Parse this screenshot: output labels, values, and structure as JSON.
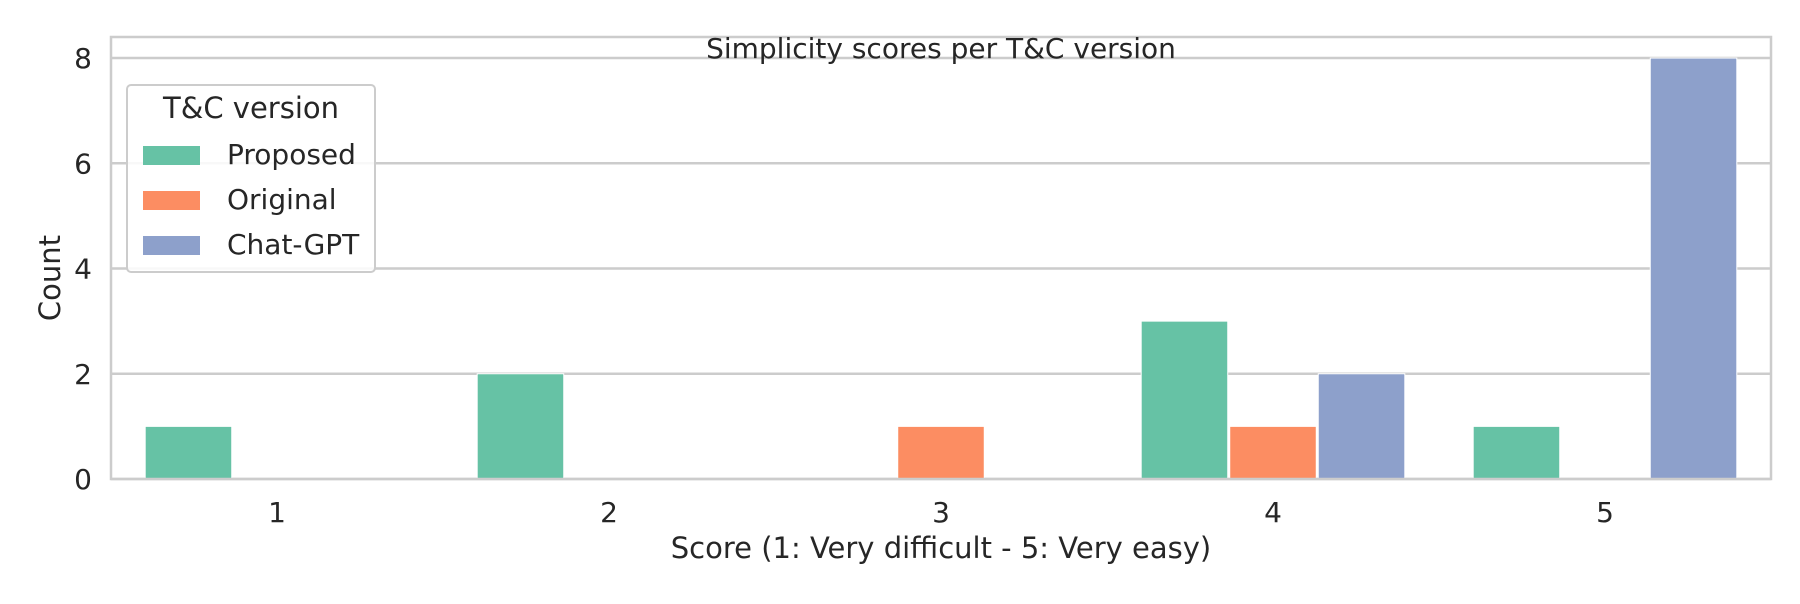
{
  "chart_data": {
    "type": "bar",
    "title": "Simplicity scores per T&C version",
    "xlabel": "Score (1: Very difficult - 5: Very easy)",
    "ylabel": "Count",
    "categories": [
      "1",
      "2",
      "3",
      "4",
      "5"
    ],
    "y_ticks": [
      0,
      2,
      4,
      6,
      8
    ],
    "ylim": [
      0,
      8.4
    ],
    "grid": true,
    "legend": {
      "title": "T&C version",
      "placement": "top-left"
    },
    "series": [
      {
        "name": "Proposed",
        "color": "#66c2a5",
        "values": [
          1,
          2,
          0,
          3,
          1
        ]
      },
      {
        "name": "Original",
        "color": "#fc8d62",
        "values": [
          0,
          0,
          1,
          1,
          0
        ]
      },
      {
        "name": "Chat-GPT",
        "color": "#8da0cb",
        "values": [
          0,
          0,
          0,
          2,
          8
        ]
      }
    ]
  }
}
